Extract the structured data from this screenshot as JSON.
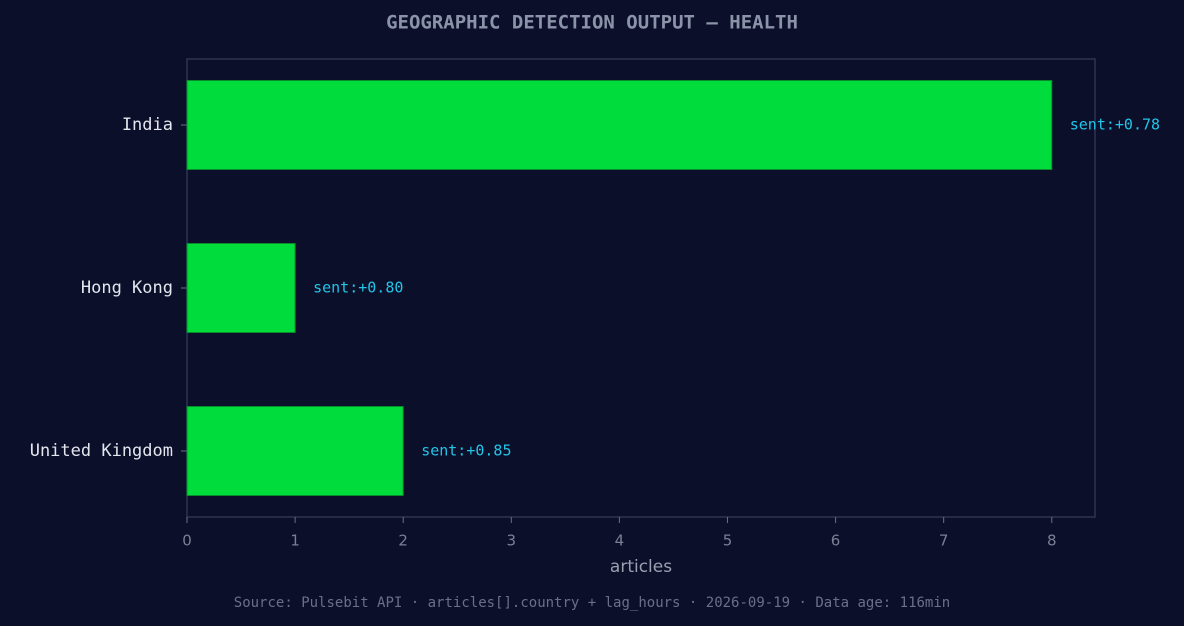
{
  "chart_data": {
    "type": "barh",
    "title": "GEOGRAPHIC DETECTION OUTPUT — HEALTH",
    "categories": [
      "India",
      "Hong Kong",
      "United Kingdom"
    ],
    "values": [
      8,
      1,
      2
    ],
    "bar_labels": [
      "sent:+0.78",
      "sent:+0.80",
      "sent:+0.85"
    ],
    "color": "#00dc3c",
    "xlabel": "articles",
    "xlim": [
      0,
      8.4
    ],
    "xticks": [
      0,
      1,
      2,
      3,
      4,
      5,
      6,
      7,
      8
    ],
    "source": "Source: Pulsebit API · articles[].country + lag_hours · 2026-09-19 · Data age: 116min"
  }
}
